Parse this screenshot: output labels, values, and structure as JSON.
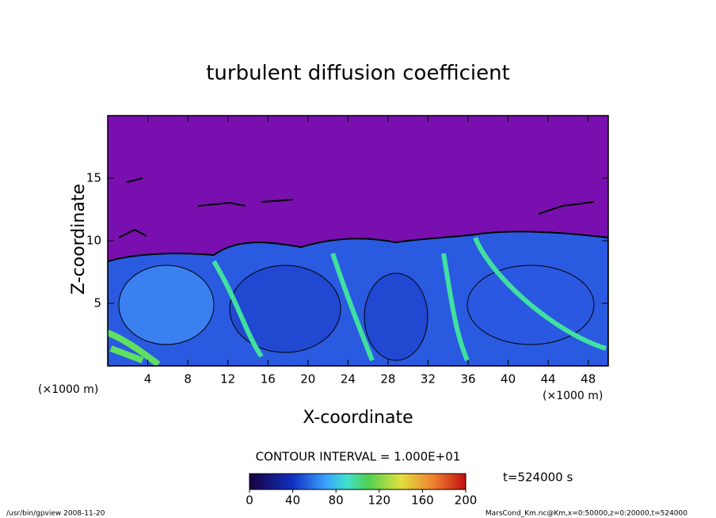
{
  "chart_data": {
    "type": "contour",
    "title": "turbulent diffusion coefficient",
    "x_label": "X-coordinate",
    "y_label": "Z-coordinate",
    "x_unit": "(×1000 m)",
    "y_unit": "(×1000 m)",
    "xlim": [
      0,
      50
    ],
    "ylim": [
      0,
      20
    ],
    "xticks": [
      4,
      8,
      12,
      16,
      20,
      24,
      28,
      32,
      36,
      40,
      44,
      48
    ],
    "yticks": [
      5,
      10,
      15
    ],
    "contour_interval": "CONTOUR INTERVAL = 1.000E+01",
    "time": "t=524000 s",
    "colorbar": {
      "lim": [
        0,
        200
      ],
      "ticks": [
        0,
        40,
        80,
        120,
        160,
        200
      ]
    },
    "footer_left": "/usr/bin/gpview  2008-11-20",
    "footer_right": "MarsCond_Km.nc@Km,x=0:50000,z=0:20000,t=524000"
  }
}
